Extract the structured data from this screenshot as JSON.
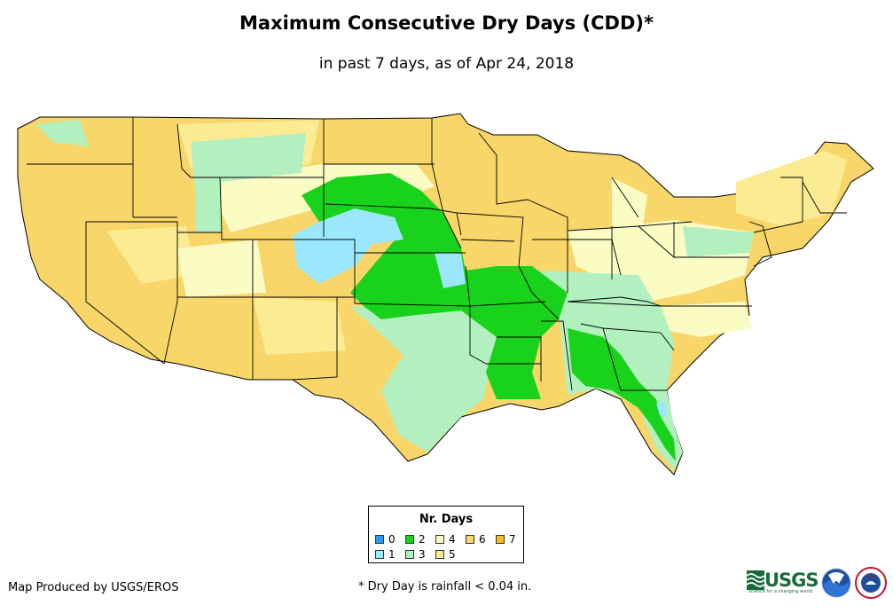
{
  "header": {
    "title": "Maximum Consecutive Dry Days (CDD)*",
    "subtitle": "in past 7 days, as of Apr 24, 2018"
  },
  "legend": {
    "title": "Nr. Days",
    "items": [
      {
        "label": "0",
        "color": "#2b9cf0"
      },
      {
        "label": "1",
        "color": "#9be7fb"
      },
      {
        "label": "2",
        "color": "#19d21b"
      },
      {
        "label": "3",
        "color": "#b3f0c0"
      },
      {
        "label": "4",
        "color": "#fafcc4"
      },
      {
        "label": "5",
        "color": "#fbeb92"
      },
      {
        "label": "6",
        "color": "#f8d669"
      },
      {
        "label": "7",
        "color": "#f7be1c"
      }
    ]
  },
  "footer": {
    "credit": "Map Produced by USGS/EROS",
    "footnote": "* Dry Day is rainfall < 0.04 in.",
    "usgs_logo": "USGS",
    "usgs_tagline": "science for a changing world"
  },
  "icons": [
    "noaa-logo-icon",
    "nws-logo-icon"
  ]
}
